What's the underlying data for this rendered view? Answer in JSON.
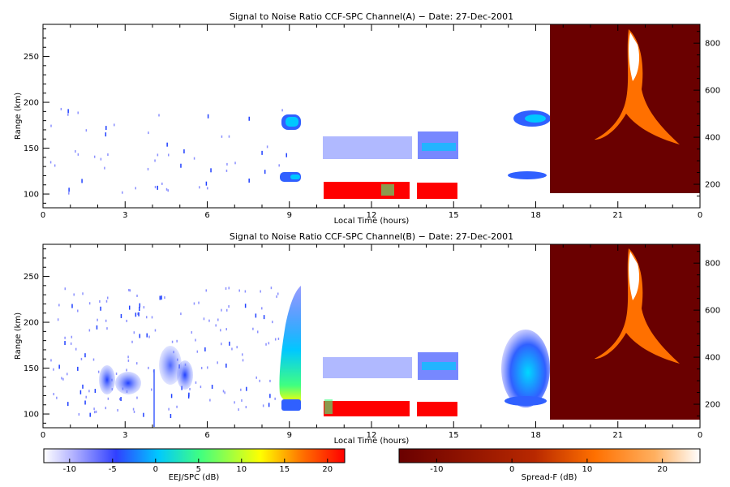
{
  "chart_data": [
    {
      "type": "heatmap",
      "title": "Signal to Noise Ratio CCF-SPC Channel(A) − Date: 27-Dec-2001",
      "xlabel": "Local Time (hours)",
      "ylabel": "Range (km)",
      "xlim": [
        0,
        24
      ],
      "ylim": [
        85,
        285
      ],
      "right_ylim": [
        100,
        880
      ],
      "xticks": [
        "0",
        "3",
        "6",
        "9",
        "12",
        "15",
        "18",
        "21",
        "0"
      ],
      "yticks": [
        100,
        150,
        200,
        250
      ],
      "right_yticks": [
        200,
        400,
        600,
        800
      ],
      "spread_f_window": [
        18.5,
        24
      ],
      "features": [
        {
          "t": [
            8.75,
            9.5
          ],
          "r": [
            168,
            185
          ],
          "snr": -6
        },
        {
          "t": [
            8.75,
            9.5
          ],
          "r": [
            108,
            120
          ],
          "snr": -6
        },
        {
          "t": [
            10.2,
            13.5
          ],
          "r": [
            138,
            162
          ],
          "snr": -7
        },
        {
          "t": [
            13.8,
            15.1
          ],
          "r": [
            138,
            162
          ],
          "snr": -4
        },
        {
          "t": [
            10.2,
            13.5
          ],
          "r": [
            96,
            112
          ],
          "snr": 22
        },
        {
          "t": [
            13.8,
            15.1
          ],
          "r": [
            96,
            112
          ],
          "snr": 22
        },
        {
          "t": [
            17.0,
            18.5
          ],
          "r": [
            170,
            188
          ],
          "snr": -6
        },
        {
          "t": [
            17.0,
            18.5
          ],
          "r": [
            114,
            124
          ],
          "snr": -6
        }
      ]
    },
    {
      "type": "heatmap",
      "title": "Signal to Noise Ratio CCF-SPC Channel(B) − Date: 27-Dec-2001",
      "xlabel": "Local Time (hours)",
      "ylabel": "Range (km)",
      "xlim": [
        0,
        24
      ],
      "ylim": [
        85,
        285
      ],
      "right_ylim": [
        100,
        880
      ],
      "xticks": [
        "0",
        "3",
        "6",
        "9",
        "12",
        "15",
        "18",
        "21",
        "0"
      ],
      "yticks": [
        100,
        150,
        200,
        250
      ],
      "right_yticks": [
        200,
        400,
        600,
        800
      ],
      "spread_f_window": [
        18.5,
        24
      ],
      "features": [
        {
          "t": [
            2.0,
            2.8
          ],
          "r": [
            112,
            148
          ],
          "snr": -7
        },
        {
          "t": [
            3.0,
            3.9
          ],
          "r": [
            112,
            148
          ],
          "snr": -8
        },
        {
          "t": [
            4.2,
            5.2
          ],
          "r": [
            120,
            170
          ],
          "snr": -8
        },
        {
          "t": [
            8.6,
            9.5
          ],
          "r": [
            100,
            235
          ],
          "snr": 3
        },
        {
          "t": [
            10.2,
            13.5
          ],
          "r": [
            138,
            162
          ],
          "snr": -7
        },
        {
          "t": [
            13.8,
            15.1
          ],
          "r": [
            138,
            162
          ],
          "snr": -4
        },
        {
          "t": [
            10.2,
            13.5
          ],
          "r": [
            96,
            112
          ],
          "snr": 22
        },
        {
          "t": [
            13.8,
            15.1
          ],
          "r": [
            96,
            112
          ],
          "snr": 22
        },
        {
          "t": [
            16.8,
            18.5
          ],
          "r": [
            105,
            200
          ],
          "snr": 0
        }
      ]
    }
  ],
  "colorbars": {
    "snr": {
      "label": "EEJ/SPC (dB)",
      "range": [
        -13,
        22
      ],
      "ticks": [
        "-10",
        "-5",
        "0",
        "5",
        "10",
        "15",
        "20"
      ],
      "tick_values": [
        -10,
        -5,
        0,
        5,
        10,
        15,
        20
      ]
    },
    "spreadf": {
      "label": "Spread-F (dB)",
      "range": [
        -15,
        25
      ],
      "ticks": [
        "-10",
        "0",
        "10",
        "20"
      ],
      "tick_values": [
        -10,
        0,
        10,
        20
      ]
    }
  },
  "colors": {
    "snr_scale": [
      "#ffffff",
      "#b0b0ff",
      "#3040ff",
      "#00c8ff",
      "#40ff80",
      "#ffff00",
      "#ff7000",
      "#ff0000"
    ],
    "spreadf_scale": [
      "#6a0000",
      "#b82800",
      "#ff7000",
      "#ffb060",
      "#ffffff"
    ],
    "spreadf_background": "#6a0000"
  }
}
